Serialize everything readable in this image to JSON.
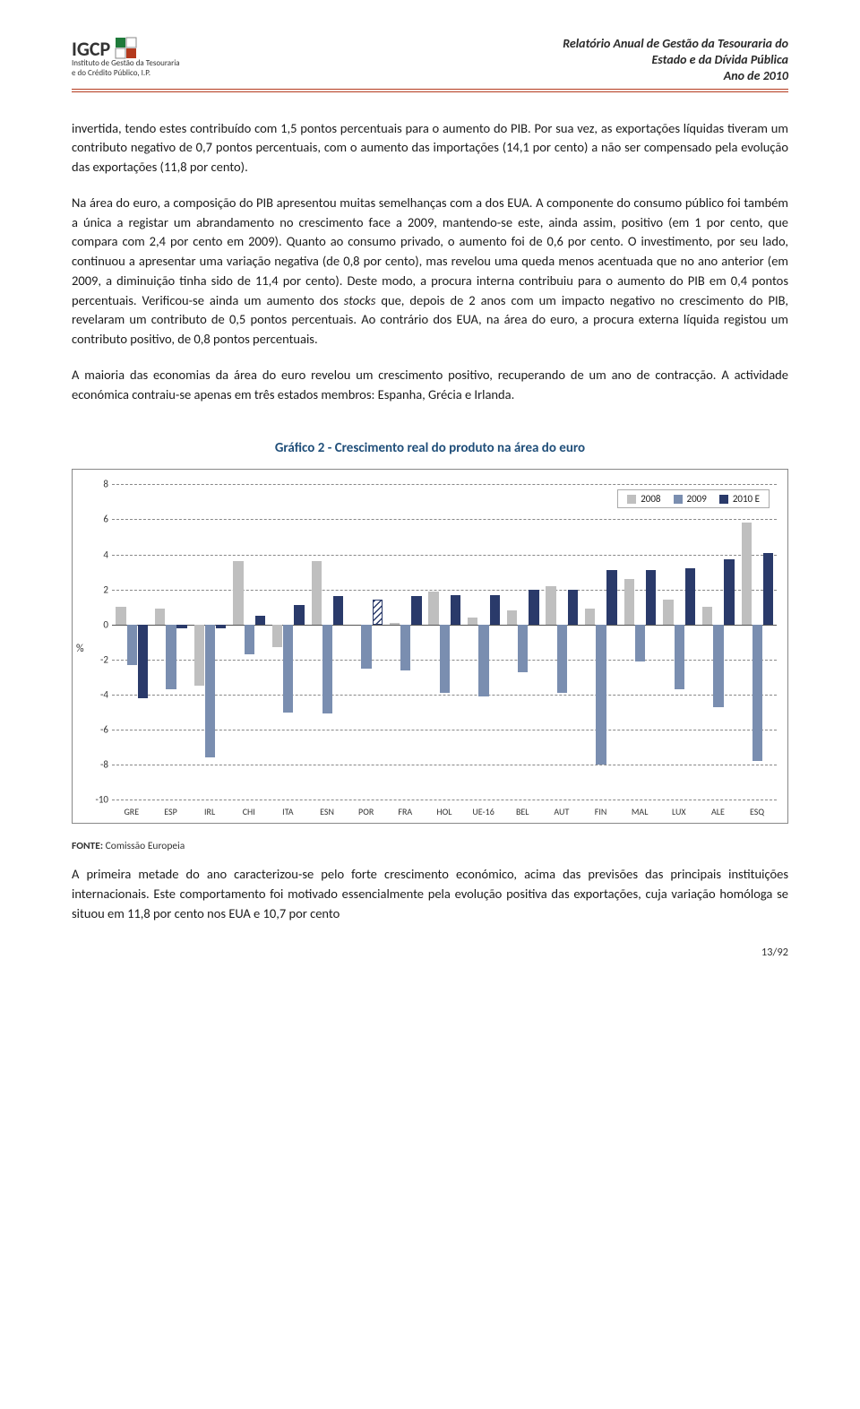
{
  "header": {
    "institute_line1": "Instituto de Gestão da Tesouraria",
    "institute_line2": "e do Crédito Público, I.P.",
    "logo_letters": "IGCP",
    "title_line1": "Relatório Anual de Gestão da Tesouraria do",
    "title_line2": "Estado e da Dívida Pública",
    "title_line3": "Ano de 2010"
  },
  "paragraphs": {
    "p1": "invertida, tendo estes contribuído com 1,5 pontos percentuais para o aumento do PIB. Por sua vez, as exportações líquidas tiveram um contributo negativo de 0,7 pontos percentuais, com o aumento das importações (14,1 por cento) a não ser compensado pela evolução das exportações (11,8 por cento).",
    "p2a": "Na área do euro, a composição do PIB apresentou muitas semelhanças com a dos EUA. A componente do consumo público foi também a única a registar um abrandamento no crescimento face a 2009, mantendo-se este, ainda assim, positivo (em 1 por cento, que compara com 2,4 por cento em 2009). Quanto ao consumo privado, o aumento foi de 0,6 por cento. O investimento, por seu lado, continuou a apresentar uma variação negativa (de 0,8 por cento), mas revelou uma queda menos acentuada que no ano anterior (em 2009, a diminuição tinha sido de 11,4 por cento). Deste modo, a procura interna contribuiu para o aumento do PIB em 0,4 pontos percentuais. Verificou-se ainda um aumento dos ",
    "p2_stocks": "stocks",
    "p2b": " que, depois de 2 anos com um impacto negativo no crescimento do PIB, revelaram um contributo de 0,5 pontos percentuais. Ao contrário dos EUA, na área do euro, a procura externa líquida registou um contributo positivo, de 0,8 pontos percentuais.",
    "p3": "A maioria das economias da área do euro revelou um crescimento positivo, recuperando de um ano de contracção. A actividade económica contraiu-se apenas em três estados membros: Espanha, Grécia e Irlanda.",
    "p4": "A primeira metade do ano caracterizou-se pelo forte crescimento económico, acima das previsões das principais instituições internacionais. Este comportamento foi motivado essencialmente pela evolução positiva das exportações, cuja variação homóloga se situou em 11,8 por cento nos EUA e 10,7 por cento"
  },
  "chart": {
    "title": "Gráfico 2 - Crescimento real do produto na área do euro",
    "ylabel": "%",
    "ylim": [
      -10,
      8
    ],
    "yticks": [
      8,
      6,
      4,
      2,
      0,
      -2,
      -4,
      -6,
      -8,
      -10
    ],
    "series": [
      {
        "label": "2008",
        "color": "#bfbfbf"
      },
      {
        "label": "2009",
        "color": "#7a8eb0"
      },
      {
        "label": "2010 E",
        "color": "#2a3a6a"
      }
    ],
    "categories": [
      {
        "code": "GRE",
        "v": [
          1.0,
          -2.3,
          -4.2
        ]
      },
      {
        "code": "ESP",
        "v": [
          0.9,
          -3.7,
          -0.2
        ]
      },
      {
        "code": "IRL",
        "v": [
          -3.5,
          -7.6,
          -0.2
        ]
      },
      {
        "code": "CHI",
        "v": [
          3.6,
          -1.7,
          0.5
        ]
      },
      {
        "code": "ITA",
        "v": [
          -1.3,
          -5.0,
          1.1
        ]
      },
      {
        "code": "ESN",
        "v": [
          3.6,
          -5.1,
          1.6
        ]
      },
      {
        "code": "POR",
        "v": [
          0.0,
          -2.5,
          1.4
        ],
        "hatch2010": true
      },
      {
        "code": "FRA",
        "v": [
          0.1,
          -2.6,
          1.6
        ]
      },
      {
        "code": "HOL",
        "v": [
          1.9,
          -3.9,
          1.7
        ]
      },
      {
        "code": "UE-16",
        "v": [
          0.4,
          -4.1,
          1.7
        ]
      },
      {
        "code": "BEL",
        "v": [
          0.8,
          -2.7,
          2.0
        ]
      },
      {
        "code": "AUT",
        "v": [
          2.2,
          -3.9,
          2.0
        ]
      },
      {
        "code": "FIN",
        "v": [
          0.9,
          -8.0,
          3.1
        ]
      },
      {
        "code": "MAL",
        "v": [
          2.6,
          -2.1,
          3.1
        ]
      },
      {
        "code": "LUX",
        "v": [
          1.4,
          -3.7,
          3.2
        ]
      },
      {
        "code": "ALE",
        "v": [
          1.0,
          -4.7,
          3.7
        ]
      },
      {
        "code": "ESQ",
        "v": [
          5.8,
          -7.8,
          4.1
        ]
      }
    ]
  },
  "fonte_label": "FONTE:",
  "fonte_text": " Comissão Europeia",
  "page_number": "13/92"
}
